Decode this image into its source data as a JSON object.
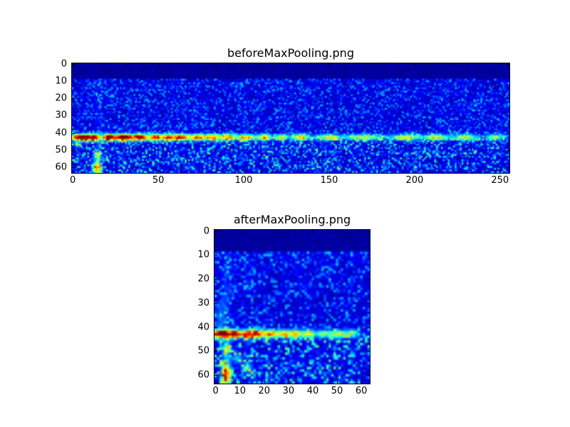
{
  "figure": {
    "background": "#ffffff",
    "axis_color": "#000000",
    "text_color": "#000000"
  },
  "chart_data": [
    {
      "type": "heatmap",
      "title": "beforeMaxPooling.png",
      "colormap": "jet",
      "cols": 256,
      "rows": 64,
      "xticks": [
        0,
        50,
        100,
        150,
        200,
        250
      ],
      "yticks": [
        0,
        10,
        20,
        30,
        40,
        50,
        60
      ],
      "xlim": [
        -0.5,
        255.5
      ],
      "ylim": [
        63.5,
        -0.5
      ],
      "legend": "none",
      "grid": false,
      "seed": 1337,
      "field": {
        "top_dark_rows": 9,
        "top_value": 0.012,
        "base_value": 0.03,
        "noise_upper": 0.13,
        "noise_lower": 0.2,
        "lower_start_row": 44,
        "coarse_amp": 0.05,
        "band": {
          "y": 42.7,
          "sigma": 1.3,
          "hotspots": [
            [
              1.5,
              0.6,
              2
            ],
            [
              7,
              0.92,
              3
            ],
            [
              13,
              0.72,
              2
            ],
            [
              21,
              0.8,
              2.5
            ],
            [
              30,
              0.97,
              4
            ],
            [
              40,
              0.75,
              2.5
            ],
            [
              48,
              0.62,
              2.5
            ],
            [
              56,
              0.58,
              3
            ],
            [
              64,
              0.55,
              3
            ],
            [
              73,
              0.5,
              3
            ],
            [
              82,
              0.45,
              3
            ],
            [
              91,
              0.48,
              2.5
            ],
            [
              101,
              0.42,
              3
            ],
            [
              112,
              0.46,
              2.5
            ],
            [
              122,
              0.4,
              2
            ],
            [
              133,
              0.46,
              2.5
            ],
            [
              150,
              0.34,
              4
            ],
            [
              170,
              0.3,
              6
            ],
            [
              195,
              0.28,
              5
            ],
            [
              213,
              0.36,
              4
            ],
            [
              230,
              0.28,
              4
            ],
            [
              247,
              0.33,
              3
            ],
            [
              60,
              0.18,
              45
            ],
            [
              150,
              0.12,
              60
            ],
            [
              220,
              0.12,
              40
            ]
          ]
        },
        "vstreaks": [
          [
            15.5,
            0.07,
            1.5,
            9,
            40
          ],
          [
            15.5,
            0.1,
            1.5,
            44,
            56
          ]
        ],
        "blobs": [
          [
            14,
            60.5,
            0.68,
            1.8,
            2.6
          ],
          [
            14,
            53.5,
            0.3,
            1.6,
            1.6
          ],
          [
            3,
            47,
            0.25,
            1.5,
            1.5
          ]
        ]
      }
    },
    {
      "type": "heatmap",
      "title": "afterMaxPooling.png",
      "colormap": "jet",
      "cols": 64,
      "rows": 64,
      "xticks": [
        0,
        10,
        20,
        30,
        40,
        50,
        60
      ],
      "yticks": [
        0,
        10,
        20,
        30,
        40,
        50,
        60
      ],
      "xlim": [
        -0.5,
        63.5
      ],
      "ylim": [
        63.5,
        -0.5
      ],
      "legend": "none",
      "grid": false,
      "seed": 4242,
      "field": {
        "top_dark_rows": 9,
        "top_value": 0.012,
        "base_value": 0.03,
        "noise_upper": 0.13,
        "noise_lower": 0.2,
        "lower_start_row": 44,
        "coarse_amp": 0.05,
        "band": {
          "y": 42.8,
          "sigma": 1.2,
          "hotspots": [
            [
              1.5,
              0.9,
              1.8
            ],
            [
              4,
              0.6,
              1
            ],
            [
              7.5,
              0.97,
              1.6
            ],
            [
              13,
              0.66,
              2
            ],
            [
              17,
              0.5,
              1.5
            ],
            [
              22,
              0.5,
              2
            ],
            [
              28,
              0.48,
              2
            ],
            [
              33,
              0.44,
              1.5
            ],
            [
              38,
              0.4,
              1.5
            ],
            [
              44,
              0.28,
              2
            ],
            [
              50,
              0.4,
              2.5
            ],
            [
              56,
              0.26,
              2
            ],
            [
              20,
              0.15,
              14
            ],
            [
              40,
              0.1,
              18
            ]
          ]
        },
        "vstreaks": [
          [
            4.5,
            0.07,
            1.3,
            9,
            40
          ],
          [
            4.5,
            0.14,
            1.3,
            44,
            63
          ]
        ],
        "blobs": [
          [
            4.2,
            59.5,
            0.72,
            1.2,
            3.0
          ],
          [
            4.5,
            49,
            0.4,
            1.2,
            1.5
          ],
          [
            13,
            57,
            0.32,
            1.5,
            1.5
          ],
          [
            9,
            53,
            0.25,
            1.5,
            1.5
          ],
          [
            2,
            36,
            0.18,
            1.5,
            4
          ]
        ]
      }
    }
  ]
}
